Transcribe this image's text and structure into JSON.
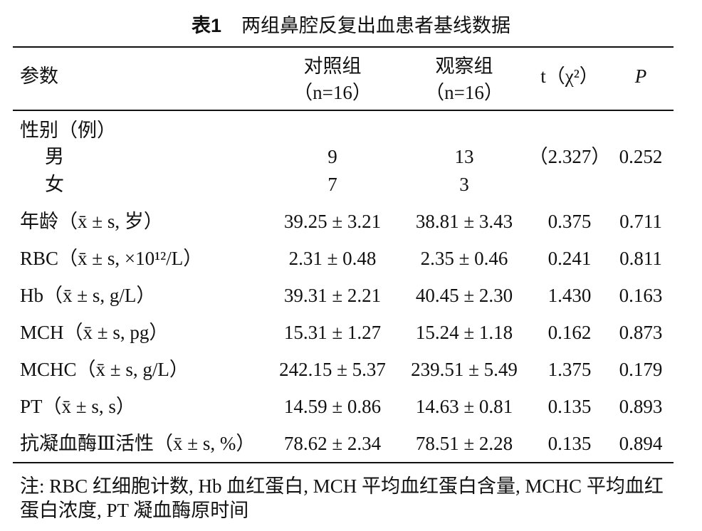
{
  "title": {
    "number": "表1",
    "text": "两组鼻腔反复出血患者基线数据"
  },
  "table": {
    "header": {
      "param": "参数",
      "control": [
        "对照组",
        "（n=16）"
      ],
      "observe": [
        "观察组",
        "（n=16）"
      ],
      "stat": "t（χ²）",
      "p": "P"
    },
    "rows": [
      {
        "label": "性别（例）",
        "sub": [
          [
            "男",
            "9",
            "13",
            "（2.327）",
            "0.252"
          ],
          [
            "女",
            "7",
            "3"
          ]
        ]
      },
      [
        "年龄（x̄ ± s, 岁）",
        "39.25 ± 3.21",
        "38.81 ± 3.43",
        "0.375",
        "0.711"
      ],
      [
        "RBC（x̄ ± s, ×10¹²/L）",
        "2.31 ± 0.48",
        "2.35 ± 0.46",
        "0.241",
        "0.811"
      ],
      [
        "Hb（x̄ ± s, g/L）",
        "39.31 ± 2.21",
        "40.45 ± 2.30",
        "1.430",
        "0.163"
      ],
      [
        "MCH（x̄ ± s, pg）",
        "15.31 ± 1.27",
        "15.24 ± 1.18",
        "0.162",
        "0.873"
      ],
      [
        "MCHC（x̄ ± s, g/L）",
        "242.15 ± 5.37",
        "239.51 ± 5.49",
        "1.375",
        "0.179"
      ],
      [
        "PT（x̄ ± s, s）",
        "14.59 ± 0.86",
        "14.63 ± 0.81",
        "0.135",
        "0.893"
      ],
      [
        "抗凝血酶Ⅲ活性（x̄ ± s, %）",
        "78.62 ± 2.34",
        "78.51 ± 2.28",
        "0.135",
        "0.894"
      ]
    ]
  },
  "note": "注: RBC 红细胞计数, Hb 血红蛋白, MCH 平均血红蛋白含量, MCHC 平均血红蛋白浓度, PT 凝血酶原时间"
}
